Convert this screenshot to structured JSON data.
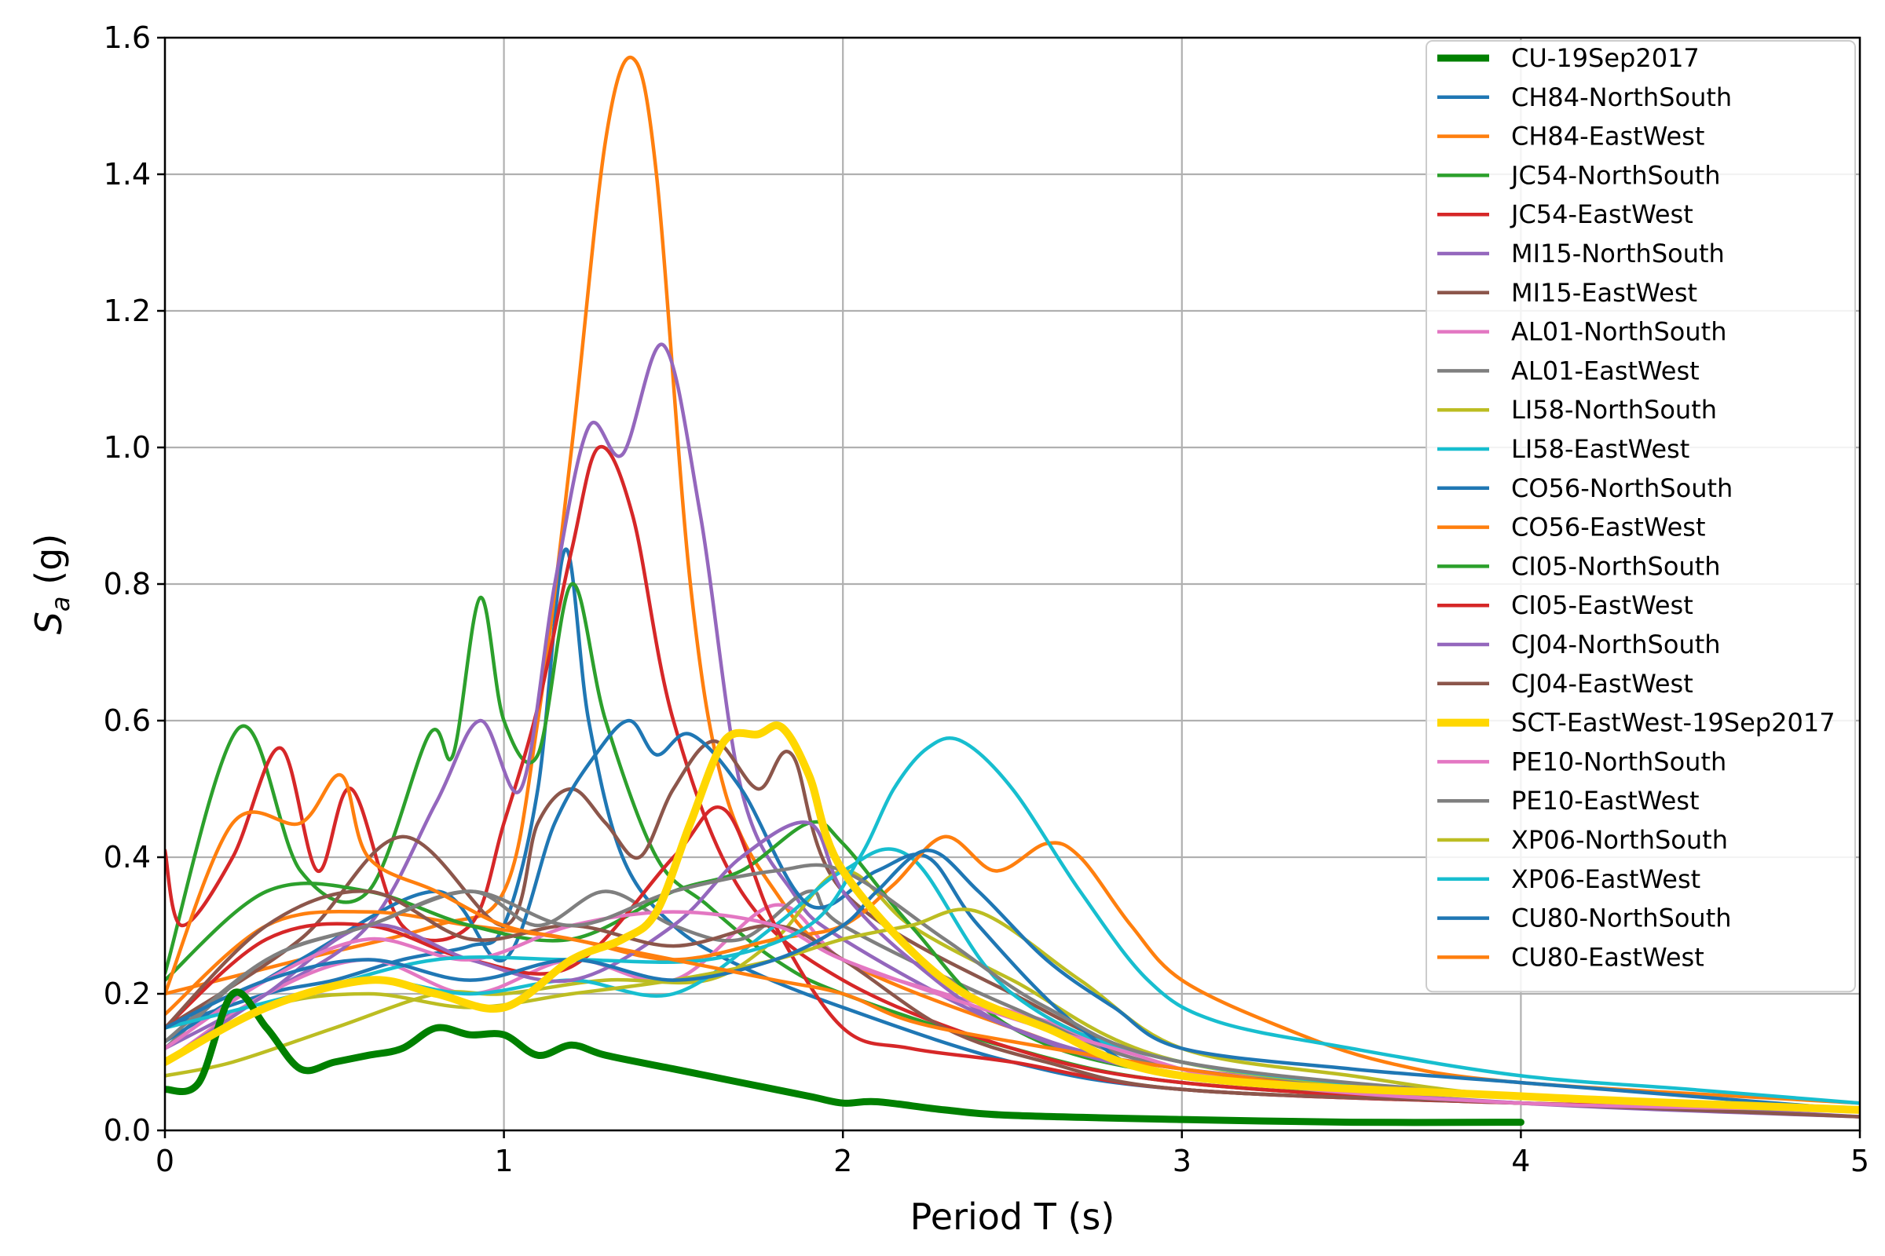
{
  "chart_data": {
    "type": "line",
    "xlabel": "Period T (s)",
    "ylabel_main": "S",
    "ylabel_sub": "a",
    "ylabel_unit": " (g)",
    "xlim": [
      0,
      5
    ],
    "ylim": [
      0,
      1.6
    ],
    "xticks": [
      0,
      1,
      2,
      3,
      4,
      5
    ],
    "xtick_labels": [
      "0",
      "1",
      "2",
      "3",
      "4",
      "5"
    ],
    "yticks": [
      0,
      0.2,
      0.4,
      0.6,
      0.8,
      1.0,
      1.2,
      1.4,
      1.6
    ],
    "ytick_labels": [
      "0.0",
      "0.2",
      "0.4",
      "0.6",
      "0.8",
      "1.0",
      "1.2",
      "1.4",
      "1.6"
    ],
    "grid": true,
    "legend_position": "top-right",
    "series": [
      {
        "name": "CU-19Sep2017",
        "color": "#008000",
        "width": 9,
        "x": [
          0,
          0.1,
          0.2,
          0.3,
          0.4,
          0.5,
          0.6,
          0.7,
          0.8,
          0.9,
          1.0,
          1.1,
          1.2,
          1.3,
          1.5,
          1.7,
          1.9,
          2.0,
          2.1,
          2.3,
          2.5,
          3.0,
          3.5,
          4.0
        ],
        "y": [
          0.06,
          0.07,
          0.2,
          0.15,
          0.09,
          0.1,
          0.11,
          0.12,
          0.15,
          0.14,
          0.14,
          0.11,
          0.125,
          0.11,
          0.09,
          0.07,
          0.05,
          0.04,
          0.042,
          0.03,
          0.022,
          0.016,
          0.012,
          0.012
        ]
      },
      {
        "name": "CH84-NorthSouth",
        "color": "#1f77b4",
        "width": 4.5,
        "x": [
          0,
          0.3,
          0.5,
          0.7,
          0.9,
          1.0,
          1.1,
          1.18,
          1.25,
          1.35,
          1.5,
          1.7,
          2.0,
          2.5,
          3.0,
          4.0,
          5.0
        ],
        "y": [
          0.15,
          0.2,
          0.22,
          0.25,
          0.27,
          0.3,
          0.5,
          0.85,
          0.6,
          0.4,
          0.3,
          0.24,
          0.18,
          0.1,
          0.06,
          0.04,
          0.03
        ]
      },
      {
        "name": "CH84-EastWest",
        "color": "#ff7f0e",
        "width": 4.5,
        "x": [
          0,
          0.4,
          0.8,
          1.0,
          1.1,
          1.2,
          1.3,
          1.38,
          1.45,
          1.55,
          1.65,
          1.8,
          2.0,
          2.5,
          3.0,
          4.0,
          5.0
        ],
        "y": [
          0.2,
          0.25,
          0.3,
          0.35,
          0.6,
          1.0,
          1.45,
          1.57,
          1.4,
          0.8,
          0.5,
          0.35,
          0.25,
          0.15,
          0.08,
          0.05,
          0.03
        ]
      },
      {
        "name": "JC54-NorthSouth",
        "color": "#2ca02c",
        "width": 4.5,
        "x": [
          0,
          0.22,
          0.4,
          0.6,
          0.78,
          0.85,
          0.93,
          1.0,
          1.1,
          1.2,
          1.3,
          1.45,
          1.6,
          1.8,
          2.0,
          2.5,
          3.0,
          4.0,
          5.0
        ],
        "y": [
          0.23,
          0.59,
          0.38,
          0.35,
          0.58,
          0.55,
          0.78,
          0.6,
          0.55,
          0.8,
          0.6,
          0.4,
          0.33,
          0.25,
          0.2,
          0.12,
          0.07,
          0.04,
          0.03
        ]
      },
      {
        "name": "JC54-EastWest",
        "color": "#d62728",
        "width": 4.5,
        "x": [
          0,
          0.05,
          0.2,
          0.34,
          0.45,
          0.55,
          0.7,
          0.9,
          1.0,
          1.1,
          1.2,
          1.28,
          1.38,
          1.5,
          1.7,
          2.0,
          2.5,
          3.0,
          4.0,
          5.0
        ],
        "y": [
          0.41,
          0.3,
          0.4,
          0.56,
          0.38,
          0.5,
          0.3,
          0.3,
          0.45,
          0.62,
          0.85,
          1.0,
          0.9,
          0.6,
          0.35,
          0.22,
          0.12,
          0.07,
          0.04,
          0.03
        ]
      },
      {
        "name": "MI15-NorthSouth",
        "color": "#9467bd",
        "width": 4.5,
        "x": [
          0,
          0.3,
          0.6,
          0.8,
          0.93,
          1.05,
          1.15,
          1.25,
          1.35,
          1.47,
          1.58,
          1.7,
          1.85,
          2.0,
          2.5,
          3.0,
          4.0,
          5.0
        ],
        "y": [
          0.12,
          0.2,
          0.3,
          0.48,
          0.6,
          0.5,
          0.8,
          1.03,
          0.99,
          1.15,
          0.9,
          0.5,
          0.35,
          0.28,
          0.15,
          0.09,
          0.05,
          0.02
        ]
      },
      {
        "name": "MI15-EastWest",
        "color": "#8c564b",
        "width": 4.5,
        "x": [
          0,
          0.4,
          0.7,
          1.0,
          1.1,
          1.2,
          1.3,
          1.4,
          1.5,
          1.62,
          1.75,
          1.85,
          2.0,
          2.5,
          3.0,
          4.0,
          5.0
        ],
        "y": [
          0.15,
          0.28,
          0.43,
          0.3,
          0.45,
          0.5,
          0.45,
          0.4,
          0.5,
          0.57,
          0.5,
          0.55,
          0.35,
          0.2,
          0.1,
          0.05,
          0.03
        ]
      },
      {
        "name": "AL01-NorthSouth",
        "color": "#e377c2",
        "width": 4.5,
        "x": [
          0,
          0.3,
          0.6,
          0.9,
          1.2,
          1.5,
          1.8,
          2.0,
          2.3,
          2.6,
          3.0,
          4.0,
          5.0
        ],
        "y": [
          0.1,
          0.2,
          0.25,
          0.2,
          0.25,
          0.22,
          0.33,
          0.25,
          0.2,
          0.16,
          0.09,
          0.05,
          0.03
        ]
      },
      {
        "name": "AL01-EastWest",
        "color": "#7f7f7f",
        "width": 4.5,
        "x": [
          0,
          0.3,
          0.6,
          0.9,
          1.1,
          1.3,
          1.5,
          1.7,
          1.9,
          2.0,
          2.5,
          3.0,
          4.0,
          5.0
        ],
        "y": [
          0.12,
          0.25,
          0.3,
          0.35,
          0.3,
          0.35,
          0.3,
          0.28,
          0.35,
          0.3,
          0.18,
          0.09,
          0.05,
          0.03
        ]
      },
      {
        "name": "LI58-NorthSouth",
        "color": "#bcbd22",
        "width": 4.5,
        "x": [
          0,
          0.2,
          0.5,
          0.8,
          1.0,
          1.3,
          1.6,
          1.8,
          2.0,
          2.2,
          2.5,
          3.0,
          4.0,
          5.0
        ],
        "y": [
          0.08,
          0.1,
          0.15,
          0.2,
          0.2,
          0.22,
          0.22,
          0.28,
          0.38,
          0.3,
          0.22,
          0.1,
          0.05,
          0.03
        ]
      },
      {
        "name": "LI58-EastWest",
        "color": "#17becf",
        "width": 4.5,
        "x": [
          0,
          0.3,
          0.6,
          0.9,
          1.2,
          1.5,
          1.8,
          2.0,
          2.2,
          2.5,
          3.0,
          4.0,
          5.0
        ],
        "y": [
          0.1,
          0.18,
          0.22,
          0.2,
          0.22,
          0.2,
          0.3,
          0.38,
          0.4,
          0.2,
          0.1,
          0.05,
          0.03
        ]
      },
      {
        "name": "CO56-NorthSouth",
        "color": "#1f77b4",
        "width": 4.5,
        "x": [
          0,
          0.4,
          0.8,
          1.0,
          1.15,
          1.27,
          1.37,
          1.45,
          1.55,
          1.7,
          1.9,
          2.1,
          2.25,
          2.4,
          2.7,
          3.0,
          4.0,
          5.0
        ],
        "y": [
          0.13,
          0.25,
          0.35,
          0.25,
          0.45,
          0.55,
          0.6,
          0.55,
          0.58,
          0.5,
          0.33,
          0.38,
          0.4,
          0.3,
          0.15,
          0.08,
          0.05,
          0.03
        ]
      },
      {
        "name": "CO56-EastWest",
        "color": "#ff7f0e",
        "width": 4.5,
        "x": [
          0,
          0.3,
          0.6,
          0.9,
          1.2,
          1.5,
          1.8,
          2.0,
          2.15,
          2.3,
          2.45,
          2.6,
          2.7,
          2.85,
          3.0,
          3.3,
          3.6,
          4.0,
          5.0
        ],
        "y": [
          0.17,
          0.3,
          0.32,
          0.3,
          0.28,
          0.25,
          0.28,
          0.3,
          0.36,
          0.43,
          0.38,
          0.42,
          0.4,
          0.3,
          0.22,
          0.15,
          0.1,
          0.07,
          0.04
        ]
      },
      {
        "name": "CI05-NorthSouth",
        "color": "#2ca02c",
        "width": 4.5,
        "x": [
          0,
          0.3,
          0.6,
          0.9,
          1.2,
          1.5,
          1.7,
          1.9,
          2.0,
          2.2,
          2.5,
          3.0,
          4.0,
          5.0
        ],
        "y": [
          0.22,
          0.35,
          0.35,
          0.3,
          0.28,
          0.35,
          0.38,
          0.45,
          0.42,
          0.3,
          0.15,
          0.08,
          0.04,
          0.03
        ]
      },
      {
        "name": "CI05-EastWest",
        "color": "#d62728",
        "width": 4.5,
        "x": [
          0,
          0.3,
          0.6,
          0.9,
          1.2,
          1.5,
          1.65,
          1.8,
          2.0,
          2.2,
          2.5,
          3.0,
          4.0,
          5.0
        ],
        "y": [
          0.15,
          0.28,
          0.3,
          0.25,
          0.24,
          0.4,
          0.47,
          0.3,
          0.15,
          0.12,
          0.1,
          0.06,
          0.04,
          0.03
        ]
      },
      {
        "name": "CJ04-NorthSouth",
        "color": "#9467bd",
        "width": 4.5,
        "x": [
          0,
          0.3,
          0.6,
          0.9,
          1.2,
          1.5,
          1.7,
          1.9,
          2.0,
          2.2,
          2.5,
          3.0,
          4.0,
          5.0
        ],
        "y": [
          0.1,
          0.2,
          0.3,
          0.25,
          0.22,
          0.3,
          0.4,
          0.45,
          0.35,
          0.25,
          0.15,
          0.08,
          0.04,
          0.02
        ]
      },
      {
        "name": "CJ04-EastWest",
        "color": "#8c564b",
        "width": 4.5,
        "x": [
          0,
          0.3,
          0.6,
          0.9,
          1.2,
          1.5,
          1.8,
          2.0,
          2.3,
          2.6,
          3.0,
          4.0,
          5.0
        ],
        "y": [
          0.15,
          0.3,
          0.35,
          0.28,
          0.3,
          0.27,
          0.3,
          0.25,
          0.15,
          0.1,
          0.06,
          0.04,
          0.02
        ]
      },
      {
        "name": "SCT-EastWest-19Sep2017",
        "color": "#ffd700",
        "width": 10,
        "x": [
          0,
          0.3,
          0.6,
          0.8,
          1.0,
          1.2,
          1.35,
          1.45,
          1.55,
          1.65,
          1.75,
          1.82,
          1.9,
          2.0,
          2.3,
          2.6,
          3.0,
          4.0,
          5.0
        ],
        "y": [
          0.1,
          0.18,
          0.22,
          0.2,
          0.18,
          0.25,
          0.28,
          0.32,
          0.45,
          0.57,
          0.58,
          0.59,
          0.52,
          0.38,
          0.22,
          0.15,
          0.08,
          0.05,
          0.03
        ]
      },
      {
        "name": "PE10-NorthSouth",
        "color": "#e377c2",
        "width": 4.5,
        "x": [
          0,
          0.3,
          0.6,
          0.9,
          1.2,
          1.5,
          1.8,
          2.0,
          2.4,
          2.8,
          3.2,
          4.0,
          5.0
        ],
        "y": [
          0.12,
          0.22,
          0.28,
          0.25,
          0.3,
          0.32,
          0.3,
          0.25,
          0.18,
          0.12,
          0.07,
          0.04,
          0.03
        ]
      },
      {
        "name": "PE10-EastWest",
        "color": "#7f7f7f",
        "width": 4.5,
        "x": [
          0,
          0.3,
          0.6,
          0.9,
          1.2,
          1.5,
          1.8,
          2.0,
          2.3,
          2.6,
          3.0,
          4.0,
          5.0
        ],
        "y": [
          0.13,
          0.25,
          0.3,
          0.35,
          0.3,
          0.35,
          0.38,
          0.38,
          0.28,
          0.18,
          0.1,
          0.05,
          0.03
        ]
      },
      {
        "name": "XP06-NorthSouth",
        "color": "#bcbd22",
        "width": 4.5,
        "x": [
          0,
          0.3,
          0.6,
          0.9,
          1.2,
          1.5,
          1.8,
          2.0,
          2.2,
          2.4,
          2.7,
          3.0,
          3.5,
          4.0,
          5.0
        ],
        "y": [
          0.1,
          0.18,
          0.2,
          0.18,
          0.2,
          0.22,
          0.25,
          0.28,
          0.3,
          0.32,
          0.22,
          0.12,
          0.08,
          0.05,
          0.03
        ]
      },
      {
        "name": "XP06-EastWest",
        "color": "#17becf",
        "width": 4.5,
        "x": [
          0,
          0.4,
          0.8,
          1.2,
          1.6,
          1.9,
          2.05,
          2.15,
          2.25,
          2.35,
          2.5,
          2.7,
          2.9,
          3.1,
          3.5,
          4.0,
          4.5,
          5.0
        ],
        "y": [
          0.15,
          0.2,
          0.25,
          0.25,
          0.25,
          0.3,
          0.4,
          0.5,
          0.56,
          0.57,
          0.5,
          0.35,
          0.22,
          0.16,
          0.12,
          0.08,
          0.06,
          0.04
        ]
      },
      {
        "name": "CU80-NorthSouth",
        "color": "#1f77b4",
        "width": 4.5,
        "x": [
          0,
          0.3,
          0.6,
          0.9,
          1.2,
          1.5,
          1.8,
          2.0,
          2.1,
          2.25,
          2.4,
          2.6,
          2.8,
          3.0,
          3.5,
          4.0,
          4.5,
          5.0
        ],
        "y": [
          0.15,
          0.22,
          0.25,
          0.22,
          0.25,
          0.22,
          0.25,
          0.3,
          0.35,
          0.41,
          0.35,
          0.25,
          0.18,
          0.12,
          0.09,
          0.07,
          0.05,
          0.03
        ]
      },
      {
        "name": "CU80-EastWest",
        "color": "#ff7f0e",
        "width": 4.5,
        "x": [
          0,
          0.2,
          0.4,
          0.52,
          0.6,
          0.8,
          1.0,
          1.2,
          1.5,
          1.8,
          2.0,
          2.2,
          2.5,
          3.0,
          3.5,
          4.0,
          5.0
        ],
        "y": [
          0.2,
          0.45,
          0.45,
          0.52,
          0.4,
          0.35,
          0.3,
          0.28,
          0.25,
          0.22,
          0.2,
          0.16,
          0.13,
          0.09,
          0.06,
          0.05,
          0.03
        ]
      }
    ]
  }
}
